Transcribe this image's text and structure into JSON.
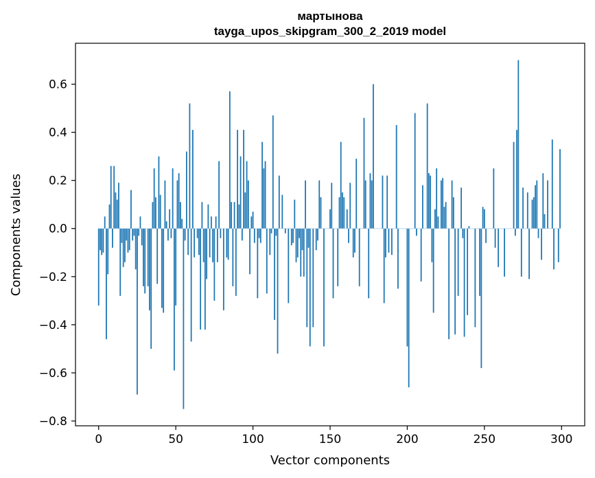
{
  "chart_data": {
    "type": "bar",
    "title": [
      "мартынова",
      "tayga_upos_skipgram_300_2_2019 model"
    ],
    "xlabel": "Vector components",
    "ylabel": "Components values",
    "xlim": [
      -15,
      315
    ],
    "ylim": [
      -0.82,
      0.77
    ],
    "xticks": [
      0,
      50,
      100,
      150,
      200,
      250,
      300
    ],
    "xtick_labels": [
      "0",
      "50",
      "100",
      "150",
      "200",
      "250",
      "300"
    ],
    "yticks": [
      -0.8,
      -0.6,
      -0.4,
      -0.2,
      0.0,
      0.2,
      0.4,
      0.6
    ],
    "ytick_labels": [
      "−0.8",
      "−0.6",
      "−0.4",
      "−0.2",
      "0.0",
      "0.2",
      "0.4",
      "0.6"
    ],
    "grid": false,
    "bar_color": "#1f77b4",
    "series": [
      {
        "values": [
          -0.32,
          -0.09,
          -0.11,
          -0.1,
          0.05,
          -0.46,
          -0.19,
          0.1,
          0.26,
          -0.08,
          0.26,
          0.15,
          0.12,
          0.19,
          -0.28,
          -0.06,
          -0.16,
          -0.14,
          -0.05,
          -0.1,
          -0.09,
          0.16,
          -0.05,
          -0.03,
          -0.17,
          -0.69,
          -0.03,
          0.05,
          -0.07,
          -0.24,
          -0.27,
          0.0,
          -0.24,
          -0.34,
          -0.5,
          0.11,
          0.25,
          0.13,
          -0.23,
          0.3,
          0.14,
          -0.33,
          -0.35,
          0.2,
          0.03,
          -0.05,
          0.08,
          -0.04,
          0.25,
          -0.59,
          -0.32,
          0.2,
          0.23,
          0.11,
          0.04,
          -0.75,
          -0.05,
          0.32,
          -0.11,
          0.52,
          -0.47,
          0.41,
          -0.12,
          0.0,
          -0.04,
          -0.11,
          -0.42,
          0.11,
          -0.14,
          -0.42,
          -0.21,
          0.1,
          -0.12,
          0.05,
          -0.14,
          -0.3,
          0.05,
          -0.14,
          0.28,
          -0.04,
          0.0,
          -0.34,
          0.0,
          -0.12,
          -0.13,
          0.57,
          0.11,
          -0.24,
          0.11,
          -0.28,
          0.41,
          0.1,
          0.3,
          -0.05,
          0.41,
          0.15,
          0.28,
          0.2,
          -0.19,
          0.05,
          0.07,
          -0.06,
          0.0,
          -0.29,
          -0.04,
          -0.06,
          0.36,
          0.25,
          0.28,
          -0.27,
          0.0,
          -0.11,
          -0.02,
          0.47,
          -0.38,
          -0.03,
          -0.52,
          0.22,
          0.0,
          0.14,
          0.0,
          -0.02,
          0.0,
          -0.31,
          0.0,
          -0.07,
          -0.06,
          0.12,
          -0.14,
          -0.12,
          -0.04,
          -0.2,
          -0.09,
          -0.2,
          0.2,
          -0.41,
          -0.08,
          -0.49,
          0.0,
          -0.41,
          0.0,
          -0.09,
          -0.05,
          0.2,
          0.13,
          0.0,
          -0.49,
          0.0,
          0.0,
          0.0,
          0.08,
          0.19,
          -0.29,
          0.0,
          0.0,
          -0.24,
          0.13,
          0.36,
          0.15,
          0.13,
          0.0,
          0.08,
          -0.06,
          0.19,
          0.0,
          -0.12,
          -0.1,
          0.29,
          0.0,
          -0.24,
          0.0,
          0.0,
          0.46,
          0.2,
          0.0,
          -0.29,
          0.23,
          0.2,
          0.6,
          0.0,
          0.0,
          0.0,
          0.0,
          0.0,
          0.22,
          -0.31,
          -0.12,
          0.22,
          -0.1,
          0.0,
          -0.11,
          0.0,
          0.0,
          0.43,
          -0.25,
          0.0,
          0.0,
          0.0,
          0.0,
          0.0,
          -0.49,
          -0.66,
          0.0,
          0.0,
          0.0,
          0.48,
          -0.03,
          0.0,
          0.0,
          -0.22,
          0.18,
          0.0,
          0.0,
          0.52,
          0.23,
          0.22,
          -0.14,
          -0.35,
          0.08,
          0.25,
          0.05,
          0.0,
          0.2,
          0.21,
          0.09,
          0.11,
          0.0,
          -0.46,
          0.0,
          0.2,
          0.13,
          -0.44,
          0.0,
          -0.28,
          0.0,
          0.17,
          -0.04,
          -0.45,
          0.0,
          -0.36,
          0.01,
          0.0,
          0.0,
          0.0,
          -0.41,
          0.0,
          0.0,
          -0.28,
          -0.58,
          0.09,
          0.08,
          -0.06,
          0.0,
          0.0,
          0.0,
          0.0,
          0.25,
          -0.08,
          0.0,
          -0.16,
          0.0,
          0.0,
          0.0,
          -0.2,
          0.0,
          0.0,
          0.0,
          0.0,
          0.0,
          0.36,
          -0.03,
          0.41,
          0.7,
          0.0,
          -0.2,
          0.17,
          0.0,
          0.0,
          0.15,
          -0.21,
          0.0,
          0.12,
          0.13,
          0.18,
          0.2,
          -0.04,
          0.0,
          -0.13,
          0.23,
          0.06,
          0.0,
          0.2,
          0.0,
          0.0,
          0.37,
          -0.17,
          0.0,
          0.0,
          -0.14,
          0.33
        ]
      }
    ]
  }
}
